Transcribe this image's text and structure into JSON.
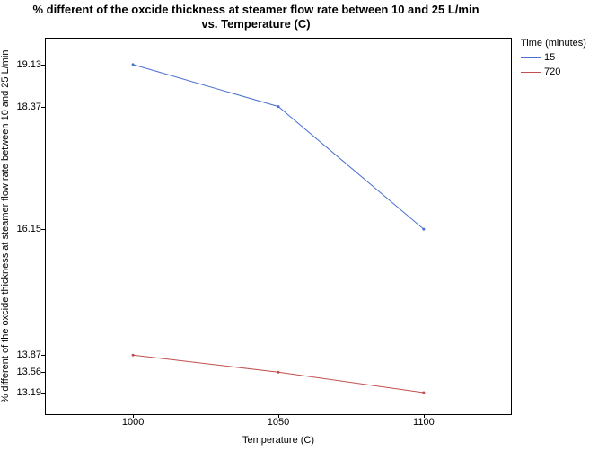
{
  "chart": {
    "type": "line",
    "title_line1": "% different of the oxcide thickness at steamer flow rate between 10 and 25 L/min",
    "title_line2": "vs. Temperature (C)",
    "title_fontsize": 13,
    "title_fontweight": "bold",
    "background_color": "#ffffff",
    "border_color": "#000000",
    "text_color": "#000000",
    "x_axis": {
      "label": "Temperature (C)",
      "label_fontsize": 11,
      "ticks": [
        1000,
        1050,
        1100
      ],
      "xlim": [
        970,
        1130
      ]
    },
    "y_axis": {
      "label": "% different of the oxcide thickness at steamer flow rate between 10 and 25 L/min",
      "label_fontsize": 11,
      "ticks": [
        13.19,
        13.56,
        13.87,
        16.15,
        18.37,
        19.13
      ],
      "ylim": [
        12.8,
        19.6
      ]
    },
    "legend": {
      "title": "Time (minutes)",
      "position": "right-top",
      "fontsize": 11
    },
    "series": [
      {
        "name": "15",
        "color": "#4a6fd0",
        "line_width": 1,
        "data": [
          {
            "x": 1000,
            "y": 19.13
          },
          {
            "x": 1050,
            "y": 18.37
          },
          {
            "x": 1100,
            "y": 16.15
          }
        ]
      },
      {
        "name": "720",
        "color": "#c0504d",
        "line_width": 1,
        "data": [
          {
            "x": 1000,
            "y": 13.87
          },
          {
            "x": 1050,
            "y": 13.56
          },
          {
            "x": 1100,
            "y": 13.19
          }
        ]
      }
    ]
  }
}
